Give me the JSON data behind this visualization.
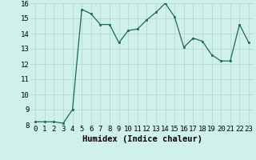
{
  "x": [
    0,
    1,
    2,
    3,
    4,
    5,
    6,
    7,
    8,
    9,
    10,
    11,
    12,
    13,
    14,
    15,
    16,
    17,
    18,
    19,
    20,
    21,
    22,
    23
  ],
  "y": [
    8.2,
    8.2,
    8.2,
    8.1,
    9.0,
    15.6,
    15.3,
    14.6,
    14.6,
    13.4,
    14.2,
    14.3,
    14.9,
    15.4,
    16.0,
    15.1,
    13.1,
    13.7,
    13.5,
    12.6,
    12.2,
    12.2,
    14.6,
    13.4
  ],
  "line_color": "#1a6b5a",
  "marker_color": "#1a6b5a",
  "bg_color": "#cff0eb",
  "grid_color": "#b8d8d4",
  "xlabel": "Humidex (Indice chaleur)",
  "ylim": [
    8,
    16
  ],
  "xlim": [
    -0.5,
    23.5
  ],
  "yticks": [
    8,
    9,
    10,
    11,
    12,
    13,
    14,
    15,
    16
  ],
  "xticks": [
    0,
    1,
    2,
    3,
    4,
    5,
    6,
    7,
    8,
    9,
    10,
    11,
    12,
    13,
    14,
    15,
    16,
    17,
    18,
    19,
    20,
    21,
    22,
    23
  ],
  "tick_fontsize": 6.5,
  "xlabel_fontsize": 7.5
}
